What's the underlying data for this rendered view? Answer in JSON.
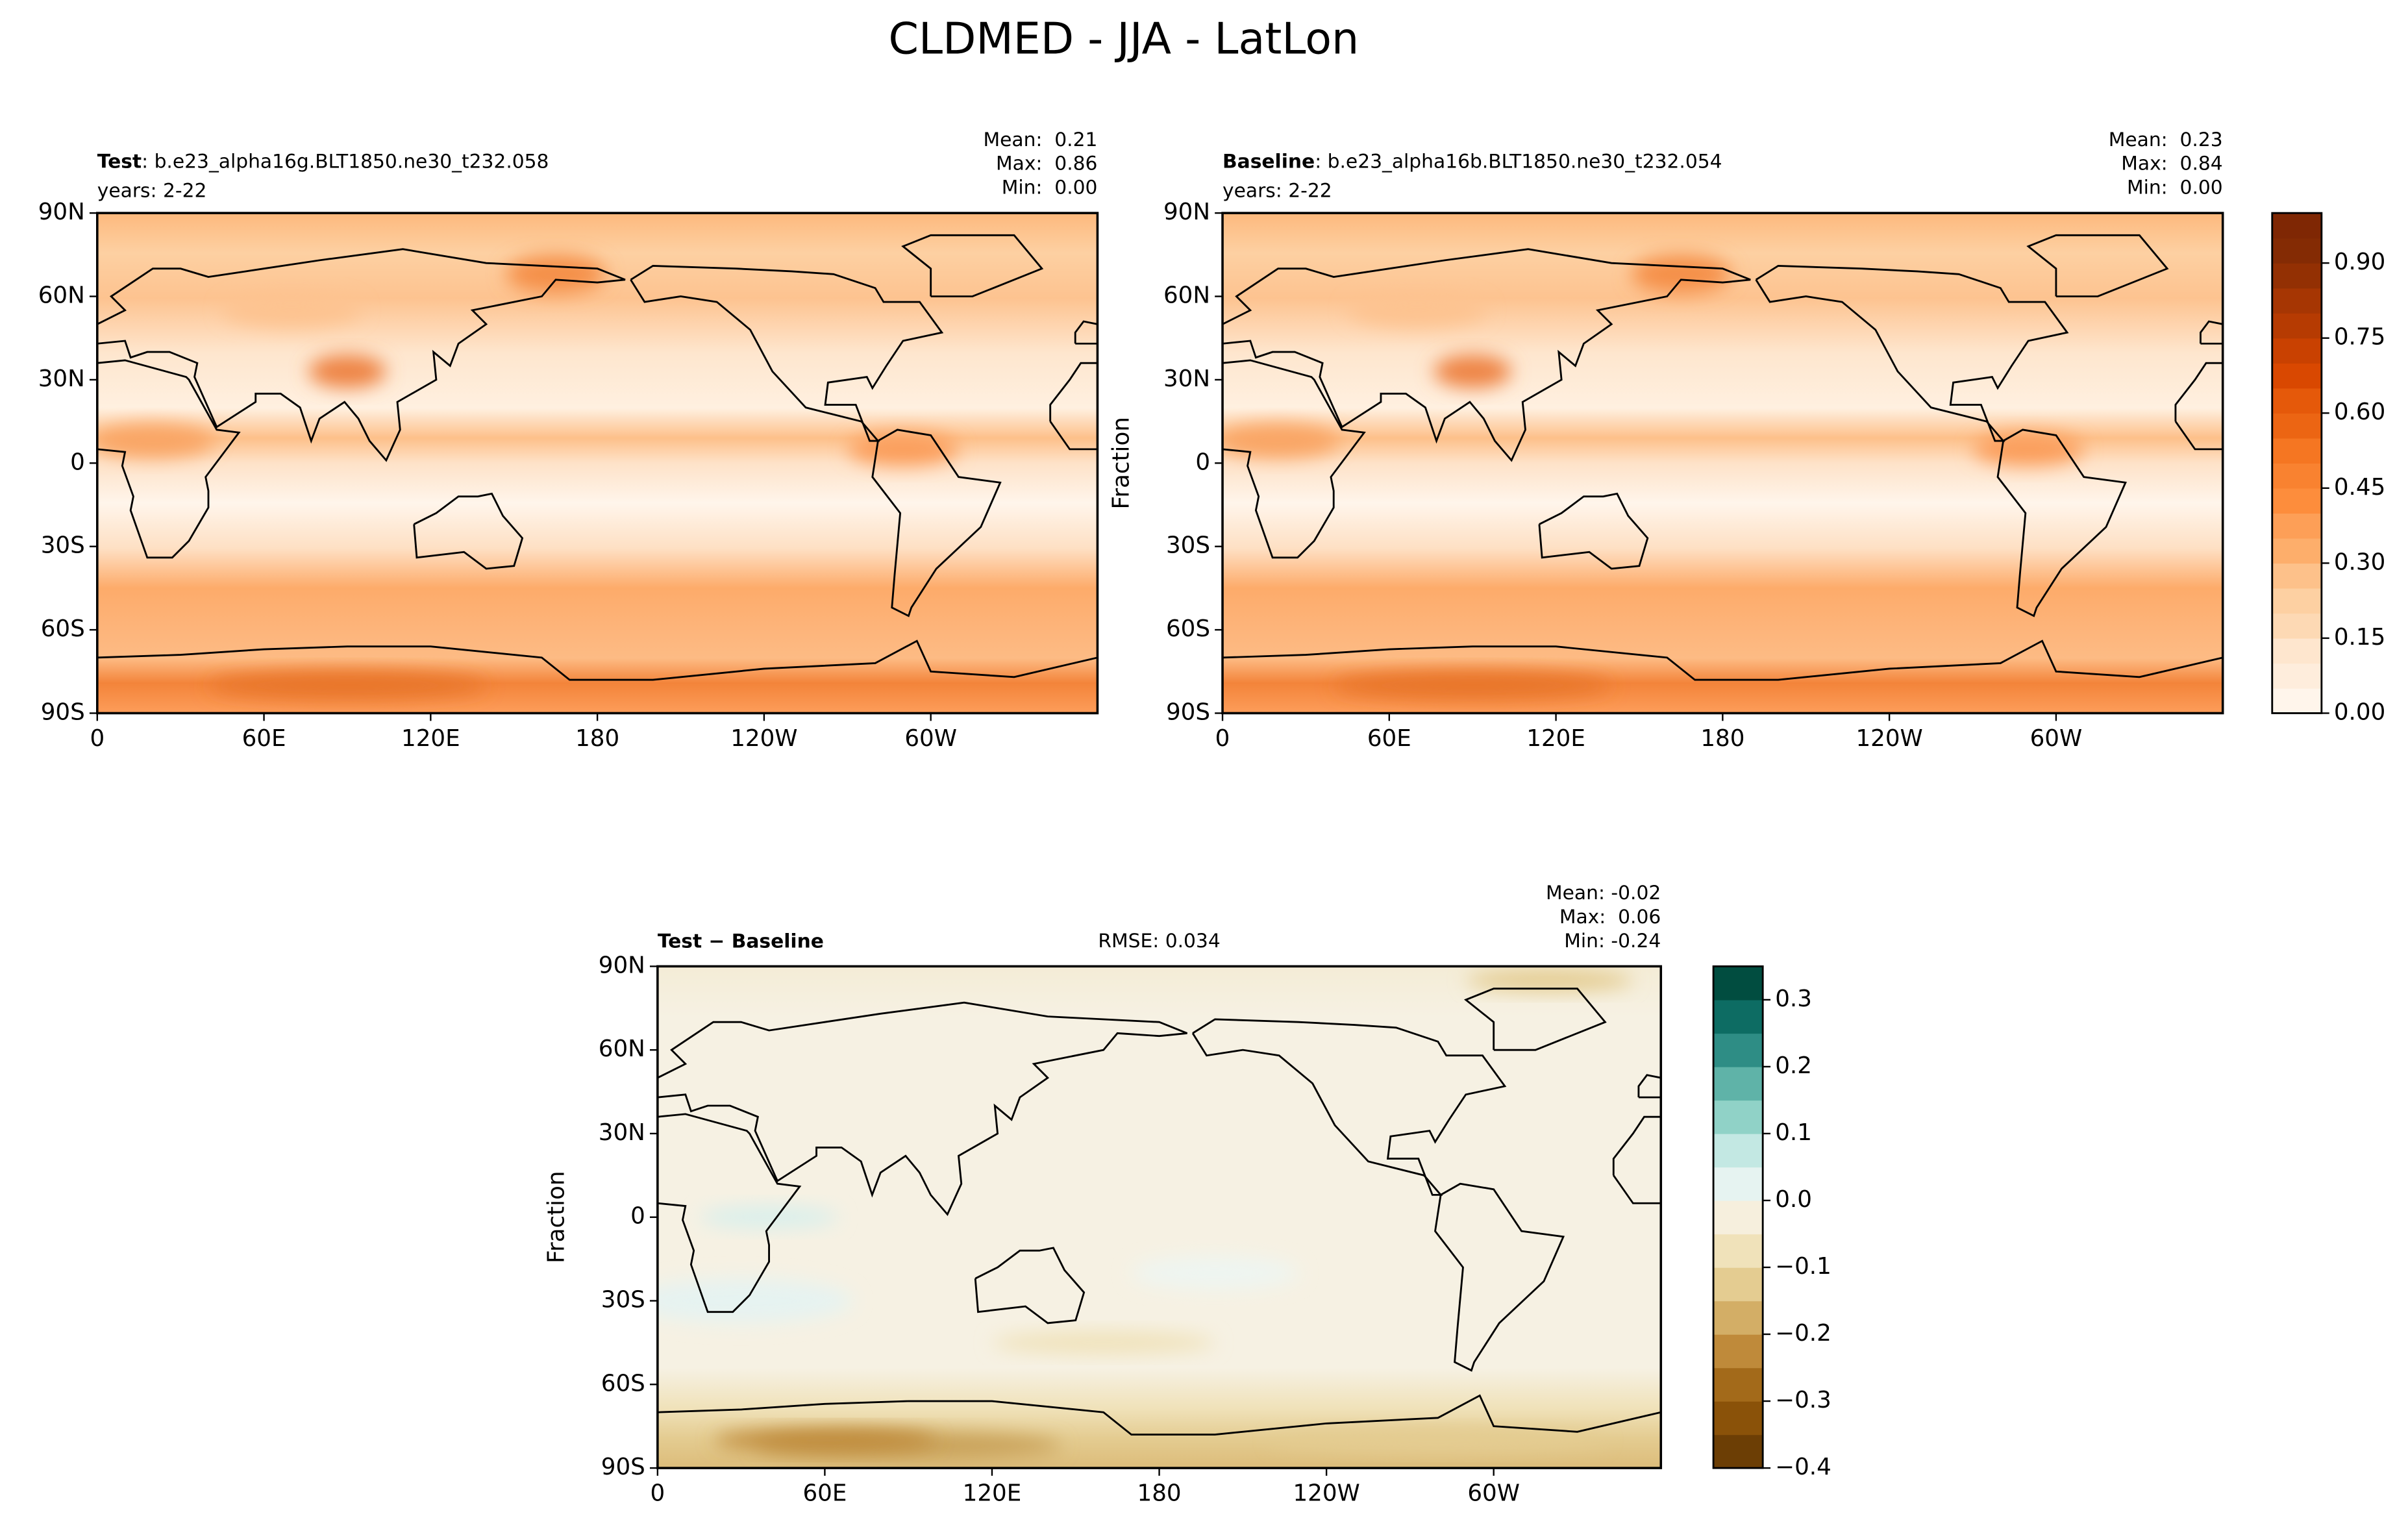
{
  "figure_title": "CLDMED - JJA - LatLon",
  "chart_data": [
    {
      "type": "map",
      "title": "Test",
      "subtitle": ": b.e23_alpha16g.BLT1850.ne30_t232.058",
      "note": "years: 2-22",
      "stats": [
        "Mean:  0.21",
        "Max:  0.86",
        "Min:  0.00"
      ],
      "xlim": [
        0,
        360
      ],
      "ylim": [
        -90,
        90
      ],
      "xticks": [
        0,
        {
          "value": 60,
          "label": "60E"
        },
        {
          "value": 120,
          "label": "120E"
        },
        180,
        {
          "value": 240,
          "label": "120W"
        },
        {
          "value": 300,
          "label": "60W"
        }
      ],
      "yticks": [
        {
          "value": -90,
          "label": "90S"
        },
        {
          "value": -60,
          "label": "60S"
        },
        {
          "value": -30,
          "label": "30S"
        },
        0,
        {
          "value": 30,
          "label": "30N"
        },
        {
          "value": 60,
          "label": "60N"
        },
        {
          "value": 90,
          "label": "90N"
        }
      ]
    },
    {
      "type": "map",
      "title": "Baseline",
      "subtitle": ": b.e23_alpha16b.BLT1850.ne30_t232.054",
      "note": "years: 2-22",
      "ylabel": "Fraction",
      "stats": [
        "Mean:  0.23",
        "Max:  0.84",
        "Min:  0.00"
      ],
      "xlim": [
        0,
        360
      ],
      "ylim": [
        -90,
        90
      ],
      "xticks": [
        0,
        {
          "value": 60,
          "label": "60E"
        },
        {
          "value": 120,
          "label": "120E"
        },
        180,
        {
          "value": 240,
          "label": "120W"
        },
        {
          "value": 300,
          "label": "60W"
        }
      ],
      "yticks": [
        {
          "value": -90,
          "label": "90S"
        },
        {
          "value": -60,
          "label": "60S"
        },
        {
          "value": -30,
          "label": "30S"
        },
        0,
        {
          "value": 30,
          "label": "30N"
        },
        {
          "value": 60,
          "label": "60N"
        },
        {
          "value": 90,
          "label": "90N"
        }
      ]
    },
    {
      "type": "map",
      "title": "Test − Baseline",
      "rmse": "RMSE: 0.034",
      "ylabel": "Fraction",
      "stats": [
        "Mean: -0.02",
        "Max:  0.06",
        "Min: -0.24"
      ],
      "xlim": [
        0,
        360
      ],
      "ylim": [
        -90,
        90
      ],
      "xticks": [
        0,
        {
          "value": 60,
          "label": "60E"
        },
        {
          "value": 120,
          "label": "120E"
        },
        180,
        {
          "value": 240,
          "label": "120W"
        },
        {
          "value": 300,
          "label": "60W"
        }
      ],
      "yticks": [
        {
          "value": -90,
          "label": "90S"
        },
        {
          "value": -60,
          "label": "60S"
        },
        {
          "value": -30,
          "label": "30S"
        },
        0,
        {
          "value": 30,
          "label": "30N"
        },
        {
          "value": 60,
          "label": "60N"
        },
        {
          "value": 90,
          "label": "90N"
        }
      ]
    },
    {
      "type": "colorbar",
      "ylim": [
        0,
        1
      ],
      "levels": [
        0,
        0.05,
        0.1,
        0.15,
        0.2,
        0.25,
        0.3,
        0.35,
        0.4,
        0.45,
        0.5,
        0.55,
        0.6,
        0.65,
        0.7,
        0.75,
        0.8,
        0.85,
        0.9,
        0.95,
        1
      ],
      "colors": [
        "#fff5eb",
        "#feeddc",
        "#fee6ce",
        "#fdd9b4",
        "#fdd0a2",
        "#fdc18a",
        "#fdae6b",
        "#fd9f57",
        "#fd8d3c",
        "#f98230",
        "#f57622",
        "#ec6513",
        "#e5590a",
        "#d94801",
        "#c94101",
        "#b63b02",
        "#a63603",
        "#933003",
        "#842b04",
        "#7f2704"
      ],
      "yticks": [
        {
          "value": 0,
          "label": "0.00"
        },
        0.15,
        {
          "value": 0.3,
          "label": "0.30"
        },
        0.45,
        {
          "value": 0.6,
          "label": "0.60"
        },
        0.75,
        {
          "value": 0.9,
          "label": "0.90"
        }
      ]
    },
    {
      "type": "colorbar",
      "ylim": [
        -0.4,
        0.35
      ],
      "levels": [
        -0.4,
        -0.35,
        -0.3,
        -0.25,
        -0.2,
        -0.15,
        -0.1,
        -0.05,
        0,
        0.05,
        0.1,
        0.15,
        0.2,
        0.25,
        0.3,
        0.35
      ],
      "colors": [
        "#6c3e05",
        "#8a5209",
        "#a36a1a",
        "#bf8a3a",
        "#d3ae66",
        "#e4cc91",
        "#f0e2ba",
        "#f6efdd",
        "#e6f3f1",
        "#c3e8e3",
        "#90d2c7",
        "#5fb3a8",
        "#2e8d85",
        "#0d6c63",
        "#014d40"
      ],
      "yticks": [
        {
          "value": -0.4,
          "label": "−0.4"
        },
        {
          "value": -0.3,
          "label": "−0.3"
        },
        {
          "value": -0.2,
          "label": "−0.2"
        },
        {
          "value": -0.1,
          "label": "−0.1"
        },
        {
          "value": 0,
          "label": "0.0"
        },
        0.1,
        0.2,
        0.3
      ]
    }
  ]
}
